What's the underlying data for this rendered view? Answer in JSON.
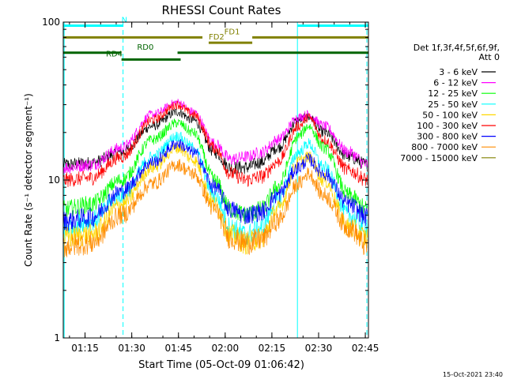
{
  "chart_data": {
    "type": "line",
    "title": "RHESSI Count Rates",
    "xlabel": "Start Time (05-Oct-09 01:06:42)",
    "ylabel": "Count Rate (s⁻¹ detector segment⁻¹)",
    "x_unit": "minutes after 01:06:42",
    "xlim": [
      1.3,
      99.3
    ],
    "ylim": [
      1,
      100
    ],
    "yscale": "log",
    "x_tick_labels": [
      "01:15",
      "01:30",
      "01:45",
      "02:00",
      "02:15",
      "02:30",
      "02:45"
    ],
    "x_ticks": [
      8.3,
      23.3,
      38.3,
      53.3,
      68.3,
      83.3,
      98.3
    ],
    "y_tick_labels": [
      "1",
      "10",
      "100"
    ],
    "y_ticks": [
      1,
      10,
      100
    ],
    "grid": false,
    "legend": {
      "position": "right",
      "header": [
        "Det 1f,3f,4f,5f,6f,9f,",
        "Att 0"
      ],
      "entries": [
        {
          "label": "3 - 6 keV",
          "color": "#000000"
        },
        {
          "label": "6 - 12 keV",
          "color": "#ff00ff"
        },
        {
          "label": "12 - 25 keV",
          "color": "#00ff00"
        },
        {
          "label": "25 - 50 keV",
          "color": "#00ffff"
        },
        {
          "label": "50 - 100 keV",
          "color": "#ffd700"
        },
        {
          "label": "100 - 300 keV",
          "color": "#ff0000"
        },
        {
          "label": "300 - 800 keV",
          "color": "#0000ff"
        },
        {
          "label": "800 - 7000 keV",
          "color": "#ff8c00"
        },
        {
          "label": "7000 - 15000 keV",
          "color": "#808000"
        }
      ]
    },
    "series": [
      {
        "name": "3 - 6 keV",
        "color": "#000000",
        "points": [
          [
            1.3,
            12.5
          ],
          [
            10,
            12.8
          ],
          [
            20,
            15
          ],
          [
            30,
            22
          ],
          [
            38,
            27
          ],
          [
            43,
            24
          ],
          [
            50,
            15
          ],
          [
            55,
            12
          ],
          [
            60,
            12
          ],
          [
            65,
            13
          ],
          [
            70,
            16
          ],
          [
            77,
            24
          ],
          [
            80,
            25
          ],
          [
            85,
            20
          ],
          [
            93,
            14
          ],
          [
            99,
            12.5
          ]
        ]
      },
      {
        "name": "6 - 12 keV",
        "color": "#ff00ff",
        "points": [
          [
            1.3,
            12
          ],
          [
            10,
            12.5
          ],
          [
            20,
            16
          ],
          [
            30,
            26
          ],
          [
            38,
            31
          ],
          [
            43,
            27
          ],
          [
            50,
            17
          ],
          [
            55,
            13.5
          ],
          [
            60,
            14
          ],
          [
            65,
            15
          ],
          [
            70,
            18
          ],
          [
            77,
            25
          ],
          [
            80,
            26
          ],
          [
            85,
            22
          ],
          [
            93,
            15
          ],
          [
            99,
            12.5
          ]
        ]
      },
      {
        "name": "12 - 25 keV",
        "color": "#00ff00",
        "points": [
          [
            1.3,
            6.5
          ],
          [
            10,
            7
          ],
          [
            20,
            10
          ],
          [
            30,
            18
          ],
          [
            38,
            23
          ],
          [
            43,
            20
          ],
          [
            50,
            10
          ],
          [
            55,
            6.5
          ],
          [
            60,
            6
          ],
          [
            65,
            6.5
          ],
          [
            70,
            9
          ],
          [
            77,
            19
          ],
          [
            80,
            22
          ],
          [
            85,
            16
          ],
          [
            93,
            8
          ],
          [
            99,
            6.5
          ]
        ]
      },
      {
        "name": "25 - 50 keV",
        "color": "#00ffff",
        "points": [
          [
            1.3,
            5
          ],
          [
            10,
            5.5
          ],
          [
            20,
            8
          ],
          [
            30,
            14
          ],
          [
            38,
            19
          ],
          [
            43,
            16
          ],
          [
            50,
            8
          ],
          [
            55,
            5
          ],
          [
            60,
            4.5
          ],
          [
            65,
            5
          ],
          [
            70,
            7.5
          ],
          [
            77,
            15
          ],
          [
            80,
            17
          ],
          [
            85,
            12
          ],
          [
            93,
            6
          ],
          [
            99,
            5
          ]
        ]
      },
      {
        "name": "50 - 100 keV",
        "color": "#ffd700",
        "points": [
          [
            1.3,
            4.3
          ],
          [
            10,
            4.5
          ],
          [
            20,
            7
          ],
          [
            30,
            12
          ],
          [
            38,
            16
          ],
          [
            43,
            13.5
          ],
          [
            50,
            7
          ],
          [
            55,
            4.5
          ],
          [
            60,
            4
          ],
          [
            65,
            4.3
          ],
          [
            70,
            6.5
          ],
          [
            77,
            13
          ],
          [
            80,
            14
          ],
          [
            85,
            10
          ],
          [
            93,
            5
          ],
          [
            99,
            4.3
          ]
        ]
      },
      {
        "name": "100 - 300 keV",
        "color": "#ff0000",
        "points": [
          [
            1.3,
            10
          ],
          [
            10,
            10.3
          ],
          [
            20,
            14
          ],
          [
            30,
            24
          ],
          [
            38,
            30
          ],
          [
            43,
            26
          ],
          [
            50,
            16
          ],
          [
            55,
            11
          ],
          [
            60,
            10
          ],
          [
            65,
            10.5
          ],
          [
            70,
            13
          ],
          [
            77,
            22
          ],
          [
            80,
            25
          ],
          [
            85,
            18
          ],
          [
            93,
            11.5
          ],
          [
            99,
            10
          ]
        ]
      },
      {
        "name": "300 - 800 keV",
        "color": "#0000ff",
        "points": [
          [
            1.3,
            5.5
          ],
          [
            10,
            5.8
          ],
          [
            20,
            8.5
          ],
          [
            30,
            13
          ],
          [
            38,
            17
          ],
          [
            43,
            15
          ],
          [
            50,
            9
          ],
          [
            55,
            6.5
          ],
          [
            60,
            6
          ],
          [
            65,
            6.3
          ],
          [
            70,
            8
          ],
          [
            77,
            12
          ],
          [
            80,
            13.5
          ],
          [
            85,
            11
          ],
          [
            93,
            7
          ],
          [
            99,
            5.8
          ]
        ]
      },
      {
        "name": "800 - 7000 keV",
        "color": "#ff8c00",
        "points": [
          [
            1.3,
            3.8
          ],
          [
            10,
            4
          ],
          [
            20,
            6
          ],
          [
            30,
            9.5
          ],
          [
            38,
            12.5
          ],
          [
            43,
            11
          ],
          [
            50,
            6.5
          ],
          [
            55,
            4.3
          ],
          [
            60,
            4
          ],
          [
            65,
            4.2
          ],
          [
            70,
            5.5
          ],
          [
            77,
            9.5
          ],
          [
            80,
            11
          ],
          [
            85,
            8
          ],
          [
            93,
            5
          ],
          [
            99,
            3.8
          ]
        ]
      }
    ],
    "attenuator_lines": [
      {
        "label": "N",
        "color": "#00ffff",
        "y": 95,
        "segments": [
          [
            1.3,
            20.5
          ],
          [
            76.5,
            99.3
          ]
        ]
      },
      {
        "label": "FD1",
        "color": "#808000",
        "y": 80,
        "segments": [
          [
            1.3,
            46
          ],
          [
            62,
            99.3
          ]
        ]
      },
      {
        "label": "FD2",
        "color": "#808000",
        "y": 74,
        "segments": [
          [
            48,
            62
          ]
        ]
      },
      {
        "label": "RD0",
        "color": "#006400",
        "y": 64,
        "segments": [
          [
            1.3,
            20
          ],
          [
            38,
            99.3
          ]
        ]
      },
      {
        "label": "RD4",
        "color": "#006400",
        "y": 58,
        "segments": [
          [
            20,
            39
          ]
        ]
      }
    ],
    "vertical_lines": [
      {
        "x": 1.6,
        "color": "#00ffff",
        "style": "solid"
      },
      {
        "x": 20.5,
        "color": "#00ffff",
        "style": "dashed"
      },
      {
        "x": 76.5,
        "color": "#00ffff",
        "style": "solid"
      },
      {
        "x": 98.8,
        "color": "#00ffff",
        "style": "dashed"
      }
    ],
    "timestamp": "15-Oct-2021 23:40"
  }
}
